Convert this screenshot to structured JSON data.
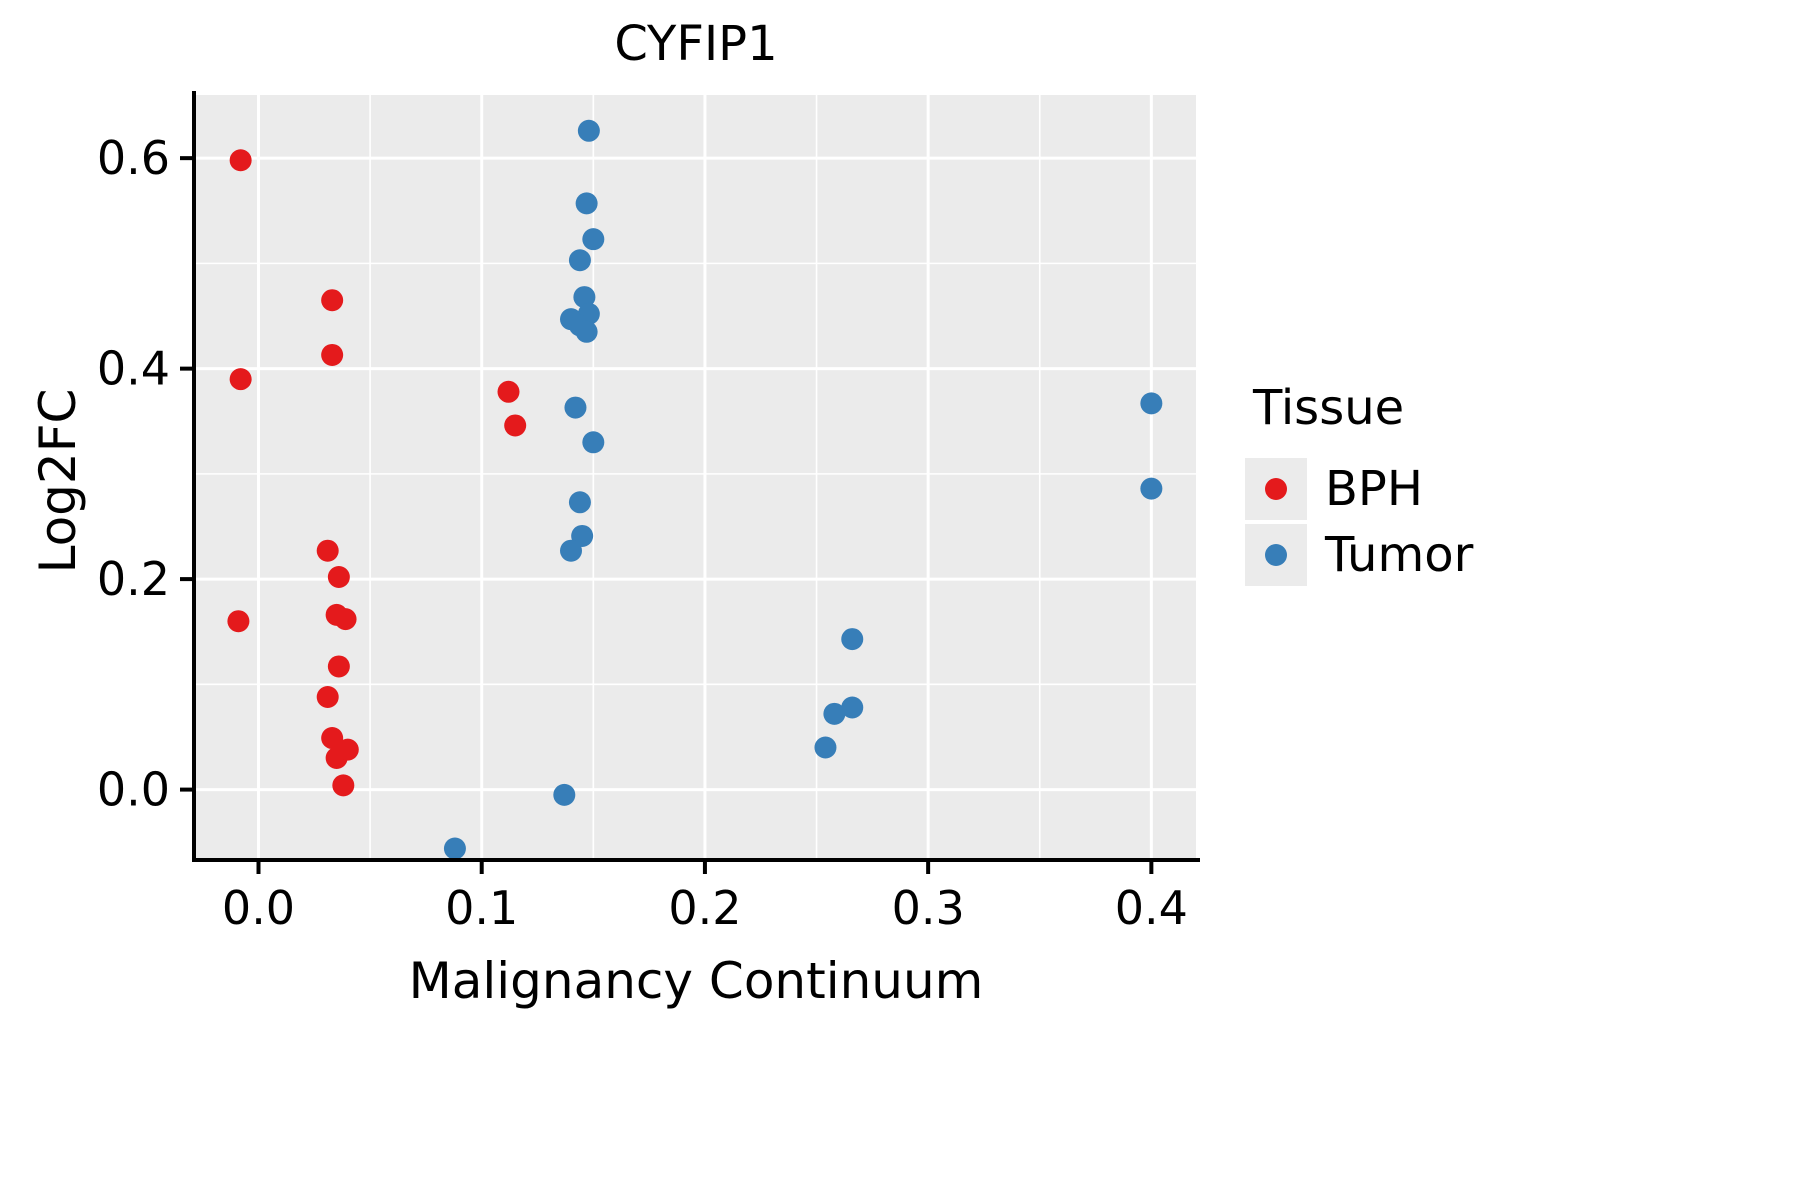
{
  "chart_data": {
    "type": "scatter",
    "title": "CYFIP1",
    "xlabel": "Malignancy Continuum",
    "ylabel": "Log2FC",
    "xlim": [
      -0.028,
      0.42
    ],
    "ylim": [
      -0.065,
      0.66
    ],
    "x_ticks": {
      "values": [
        0.0,
        0.1,
        0.2,
        0.3,
        0.4
      ],
      "labels": [
        "0.0",
        "0.1",
        "0.2",
        "0.3",
        "0.4"
      ]
    },
    "y_ticks": {
      "values": [
        0.0,
        0.2,
        0.4,
        0.6
      ],
      "labels": [
        "0.0",
        "0.2",
        "0.4",
        "0.6"
      ]
    },
    "x_minor_ticks": [
      0.05,
      0.15,
      0.25,
      0.35
    ],
    "y_minor_ticks": [
      0.1,
      0.3,
      0.5
    ],
    "grid": true,
    "panel_background": "#ebebeb",
    "grid_color": "#ffffff",
    "legend": {
      "title": "Tissue",
      "position": "right"
    },
    "series": [
      {
        "name": "BPH",
        "color": "#e41a1c",
        "points": [
          [
            -0.008,
            0.598
          ],
          [
            -0.008,
            0.39
          ],
          [
            -0.009,
            0.16
          ],
          [
            0.033,
            0.465
          ],
          [
            0.033,
            0.413
          ],
          [
            0.031,
            0.227
          ],
          [
            0.036,
            0.202
          ],
          [
            0.035,
            0.166
          ],
          [
            0.039,
            0.162
          ],
          [
            0.036,
            0.117
          ],
          [
            0.031,
            0.088
          ],
          [
            0.033,
            0.049
          ],
          [
            0.035,
            0.03
          ],
          [
            0.04,
            0.038
          ],
          [
            0.038,
            0.004
          ],
          [
            0.112,
            0.378
          ],
          [
            0.115,
            0.346
          ]
        ]
      },
      {
        "name": "Tumor",
        "color": "#377eb8",
        "points": [
          [
            0.148,
            0.626
          ],
          [
            0.147,
            0.557
          ],
          [
            0.15,
            0.523
          ],
          [
            0.144,
            0.503
          ],
          [
            0.146,
            0.468
          ],
          [
            0.148,
            0.452
          ],
          [
            0.14,
            0.447
          ],
          [
            0.144,
            0.441
          ],
          [
            0.147,
            0.435
          ],
          [
            0.142,
            0.363
          ],
          [
            0.15,
            0.33
          ],
          [
            0.144,
            0.273
          ],
          [
            0.145,
            0.241
          ],
          [
            0.14,
            0.227
          ],
          [
            0.137,
            -0.005
          ],
          [
            0.088,
            -0.056
          ],
          [
            0.254,
            0.04
          ],
          [
            0.258,
            0.072
          ],
          [
            0.266,
            0.078
          ],
          [
            0.266,
            0.143
          ],
          [
            0.4,
            0.367
          ],
          [
            0.4,
            0.286
          ]
        ]
      }
    ]
  }
}
